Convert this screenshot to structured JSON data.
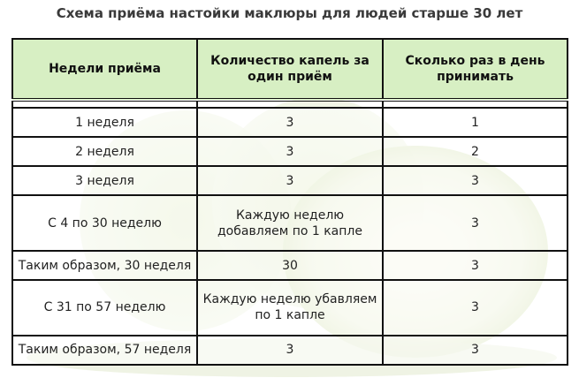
{
  "title": "Схема приёма настойки маклюры для людей старше 30 лет",
  "headers": [
    "Недели приёма",
    "Количество капель за один приём",
    "Сколько раз в день принимать"
  ],
  "rows": [
    {
      "weeks": "1 неделя",
      "drops": "3",
      "times": "1"
    },
    {
      "weeks": "2 неделя",
      "drops": "3",
      "times": "2"
    },
    {
      "weeks": "3 неделя",
      "drops": "3",
      "times": "3"
    },
    {
      "weeks": "С 4 по 30 неделю",
      "drops": "Каждую неделю добавляем по 1 капле",
      "times": "3"
    },
    {
      "weeks": "Таким образом, 30 неделя",
      "drops": "30",
      "times": "3"
    },
    {
      "weeks": "С 31 по 57 неделю",
      "drops": "Каждую неделю убавляем по 1 капле",
      "times": "3"
    },
    {
      "weeks": "Таким образом, 57 неделя",
      "drops": "3",
      "times": "3"
    }
  ],
  "colors": {
    "header_bg": "#d7efc3",
    "border": "#111111",
    "fruit": "#c9dca0"
  }
}
